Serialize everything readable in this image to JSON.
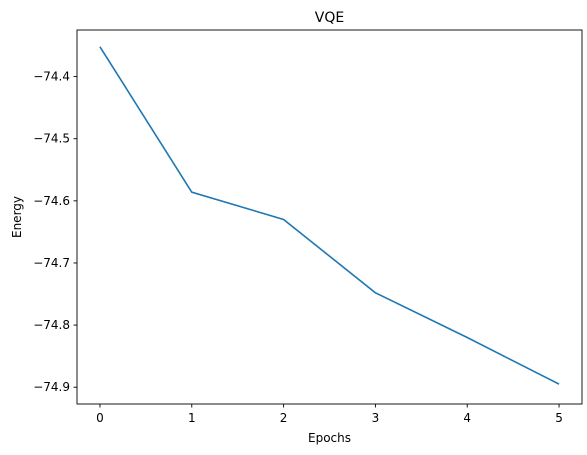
{
  "chart_data": {
    "type": "line",
    "title": "VQE",
    "xlabel": "Epochs",
    "ylabel": "Energy",
    "xlim": [
      -0.25,
      5.25
    ],
    "ylim": [
      -74.927,
      -74.325
    ],
    "xticks": [
      0,
      1,
      2,
      3,
      4,
      5
    ],
    "xtick_labels": [
      "0",
      "1",
      "2",
      "3",
      "4",
      "5"
    ],
    "yticks": [
      -74.4,
      -74.5,
      -74.6,
      -74.7,
      -74.8,
      -74.9
    ],
    "ytick_labels": [
      "−74.4",
      "−74.5",
      "−74.6",
      "−74.7",
      "−74.8",
      "−74.9"
    ],
    "grid": false,
    "series": [
      {
        "color": "#1f77b4",
        "x": [
          0,
          1,
          2,
          3,
          4,
          5
        ],
        "y": [
          -74.352,
          -74.586,
          -74.63,
          -74.748,
          -74.82,
          -74.895
        ]
      }
    ]
  }
}
